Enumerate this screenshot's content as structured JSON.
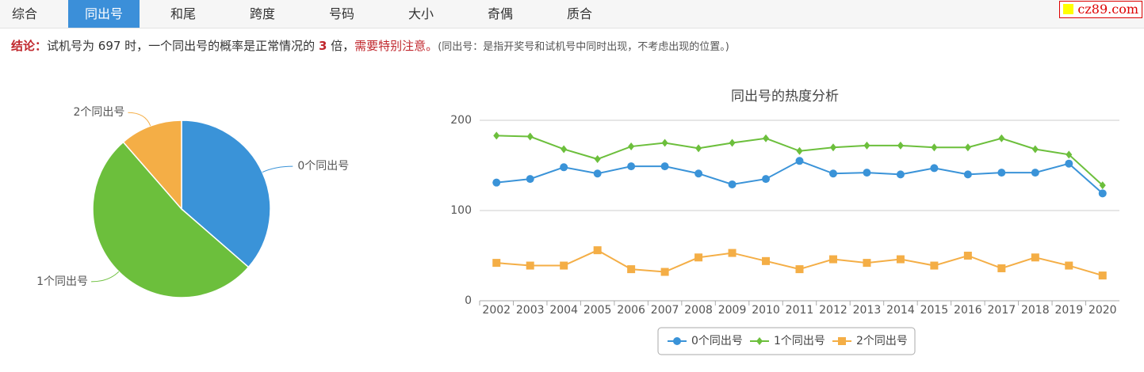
{
  "tabs": [
    "综合",
    "同出号",
    "和尾",
    "跨度",
    "号码",
    "大小",
    "奇偶",
    "质合"
  ],
  "active_tab": 1,
  "logo": "cz89.com",
  "conclusion": {
    "label": "结论：",
    "text1": "试机号为 697 时，一个同出号的概率是正常情况的 ",
    "multiple": 3,
    "text2": " 倍，",
    "warning": "需要特别注意。",
    "note": "(同出号：是指开奖号和试机号中同时出现，不考虑出现的位置。)"
  },
  "chart_data": [
    {
      "type": "pie",
      "categories": [
        "0个同出号",
        "1个同出号",
        "2个同出号"
      ],
      "values": [
        36.4,
        52.2,
        11.4
      ],
      "colors": [
        "#3a93d8",
        "#6cbf3c",
        "#f4ae46"
      ]
    },
    {
      "type": "line",
      "title": "同出号的热度分析",
      "categories": [
        "2002",
        "2003",
        "2004",
        "2005",
        "2006",
        "2007",
        "2008",
        "2009",
        "2010",
        "2011",
        "2012",
        "2013",
        "2014",
        "2015",
        "2016",
        "2017",
        "2018",
        "2019",
        "2020"
      ],
      "series": [
        {
          "name": "0个同出号",
          "color": "#3a93d8",
          "marker": "circle",
          "values": [
            131,
            135,
            148,
            141,
            149,
            149,
            141,
            129,
            135,
            155,
            141,
            142,
            140,
            147,
            140,
            142,
            142,
            152,
            119
          ]
        },
        {
          "name": "1个同出号",
          "color": "#6cbf3c",
          "marker": "diamond",
          "values": [
            183,
            182,
            168,
            157,
            171,
            175,
            169,
            175,
            180,
            166,
            170,
            172,
            172,
            170,
            170,
            180,
            168,
            162,
            128
          ]
        },
        {
          "name": "2个同出号",
          "color": "#f4ae46",
          "marker": "square",
          "values": [
            42,
            39,
            39,
            56,
            35,
            32,
            48,
            53,
            44,
            35,
            46,
            42,
            46,
            39,
            50,
            36,
            48,
            39,
            28
          ]
        }
      ],
      "ylim": [
        0,
        200
      ],
      "yticks": [
        0,
        100,
        200
      ],
      "grid": true,
      "legend": "bottom"
    }
  ]
}
